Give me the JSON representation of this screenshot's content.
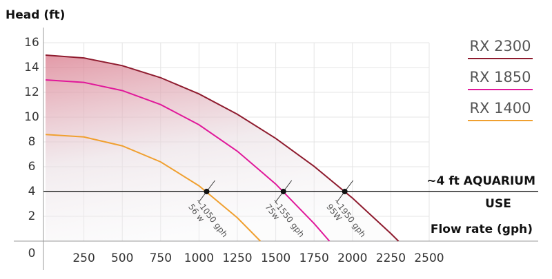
{
  "chart_data": {
    "type": "line",
    "ylabel": "Head (ft)",
    "xlabel": "Flow rate (gph)",
    "xlim": [
      0,
      2500
    ],
    "ylim": [
      0,
      16
    ],
    "xticks": [
      250,
      500,
      750,
      1000,
      1250,
      1500,
      1750,
      2000,
      2250,
      2500
    ],
    "yticks": [
      0,
      2,
      4,
      6,
      8,
      10,
      12,
      14,
      16
    ],
    "grid": true,
    "legend": "right",
    "series": [
      {
        "name": "RX 2300",
        "color": "#8e1b2e",
        "x": [
          0,
          250,
          500,
          750,
          1000,
          1250,
          1500,
          1750,
          2000,
          2250,
          2300
        ],
        "values": [
          15,
          14.77,
          14.15,
          13.18,
          11.87,
          10.23,
          8.28,
          6.03,
          3.47,
          0.61,
          0
        ]
      },
      {
        "name": "RX 1850",
        "color": "#e0189a",
        "x": [
          0,
          250,
          500,
          750,
          1000,
          1250,
          1500,
          1750,
          1850
        ],
        "values": [
          13,
          12.8,
          12.14,
          11.01,
          9.38,
          7.25,
          4.6,
          1.42,
          0
        ]
      },
      {
        "name": "RX 1400",
        "color": "#f0a030",
        "x": [
          0,
          250,
          500,
          750,
          1000,
          1250,
          1400
        ],
        "values": [
          8.6,
          8.4,
          7.68,
          6.39,
          4.46,
          1.88,
          0
        ]
      }
    ],
    "reference_line": {
      "y": 4,
      "label": "~4 ft  AQUARIUM",
      "label2": "USE"
    },
    "annotations": [
      {
        "x": 1050,
        "y": 4,
        "lines": [
          "~1050 gph",
          "56 w"
        ]
      },
      {
        "x": 1550,
        "y": 4,
        "lines": [
          "~1550 gph",
          "75w"
        ]
      },
      {
        "x": 1950,
        "y": 4,
        "lines": [
          "~1950 gph",
          "95W"
        ]
      }
    ]
  }
}
